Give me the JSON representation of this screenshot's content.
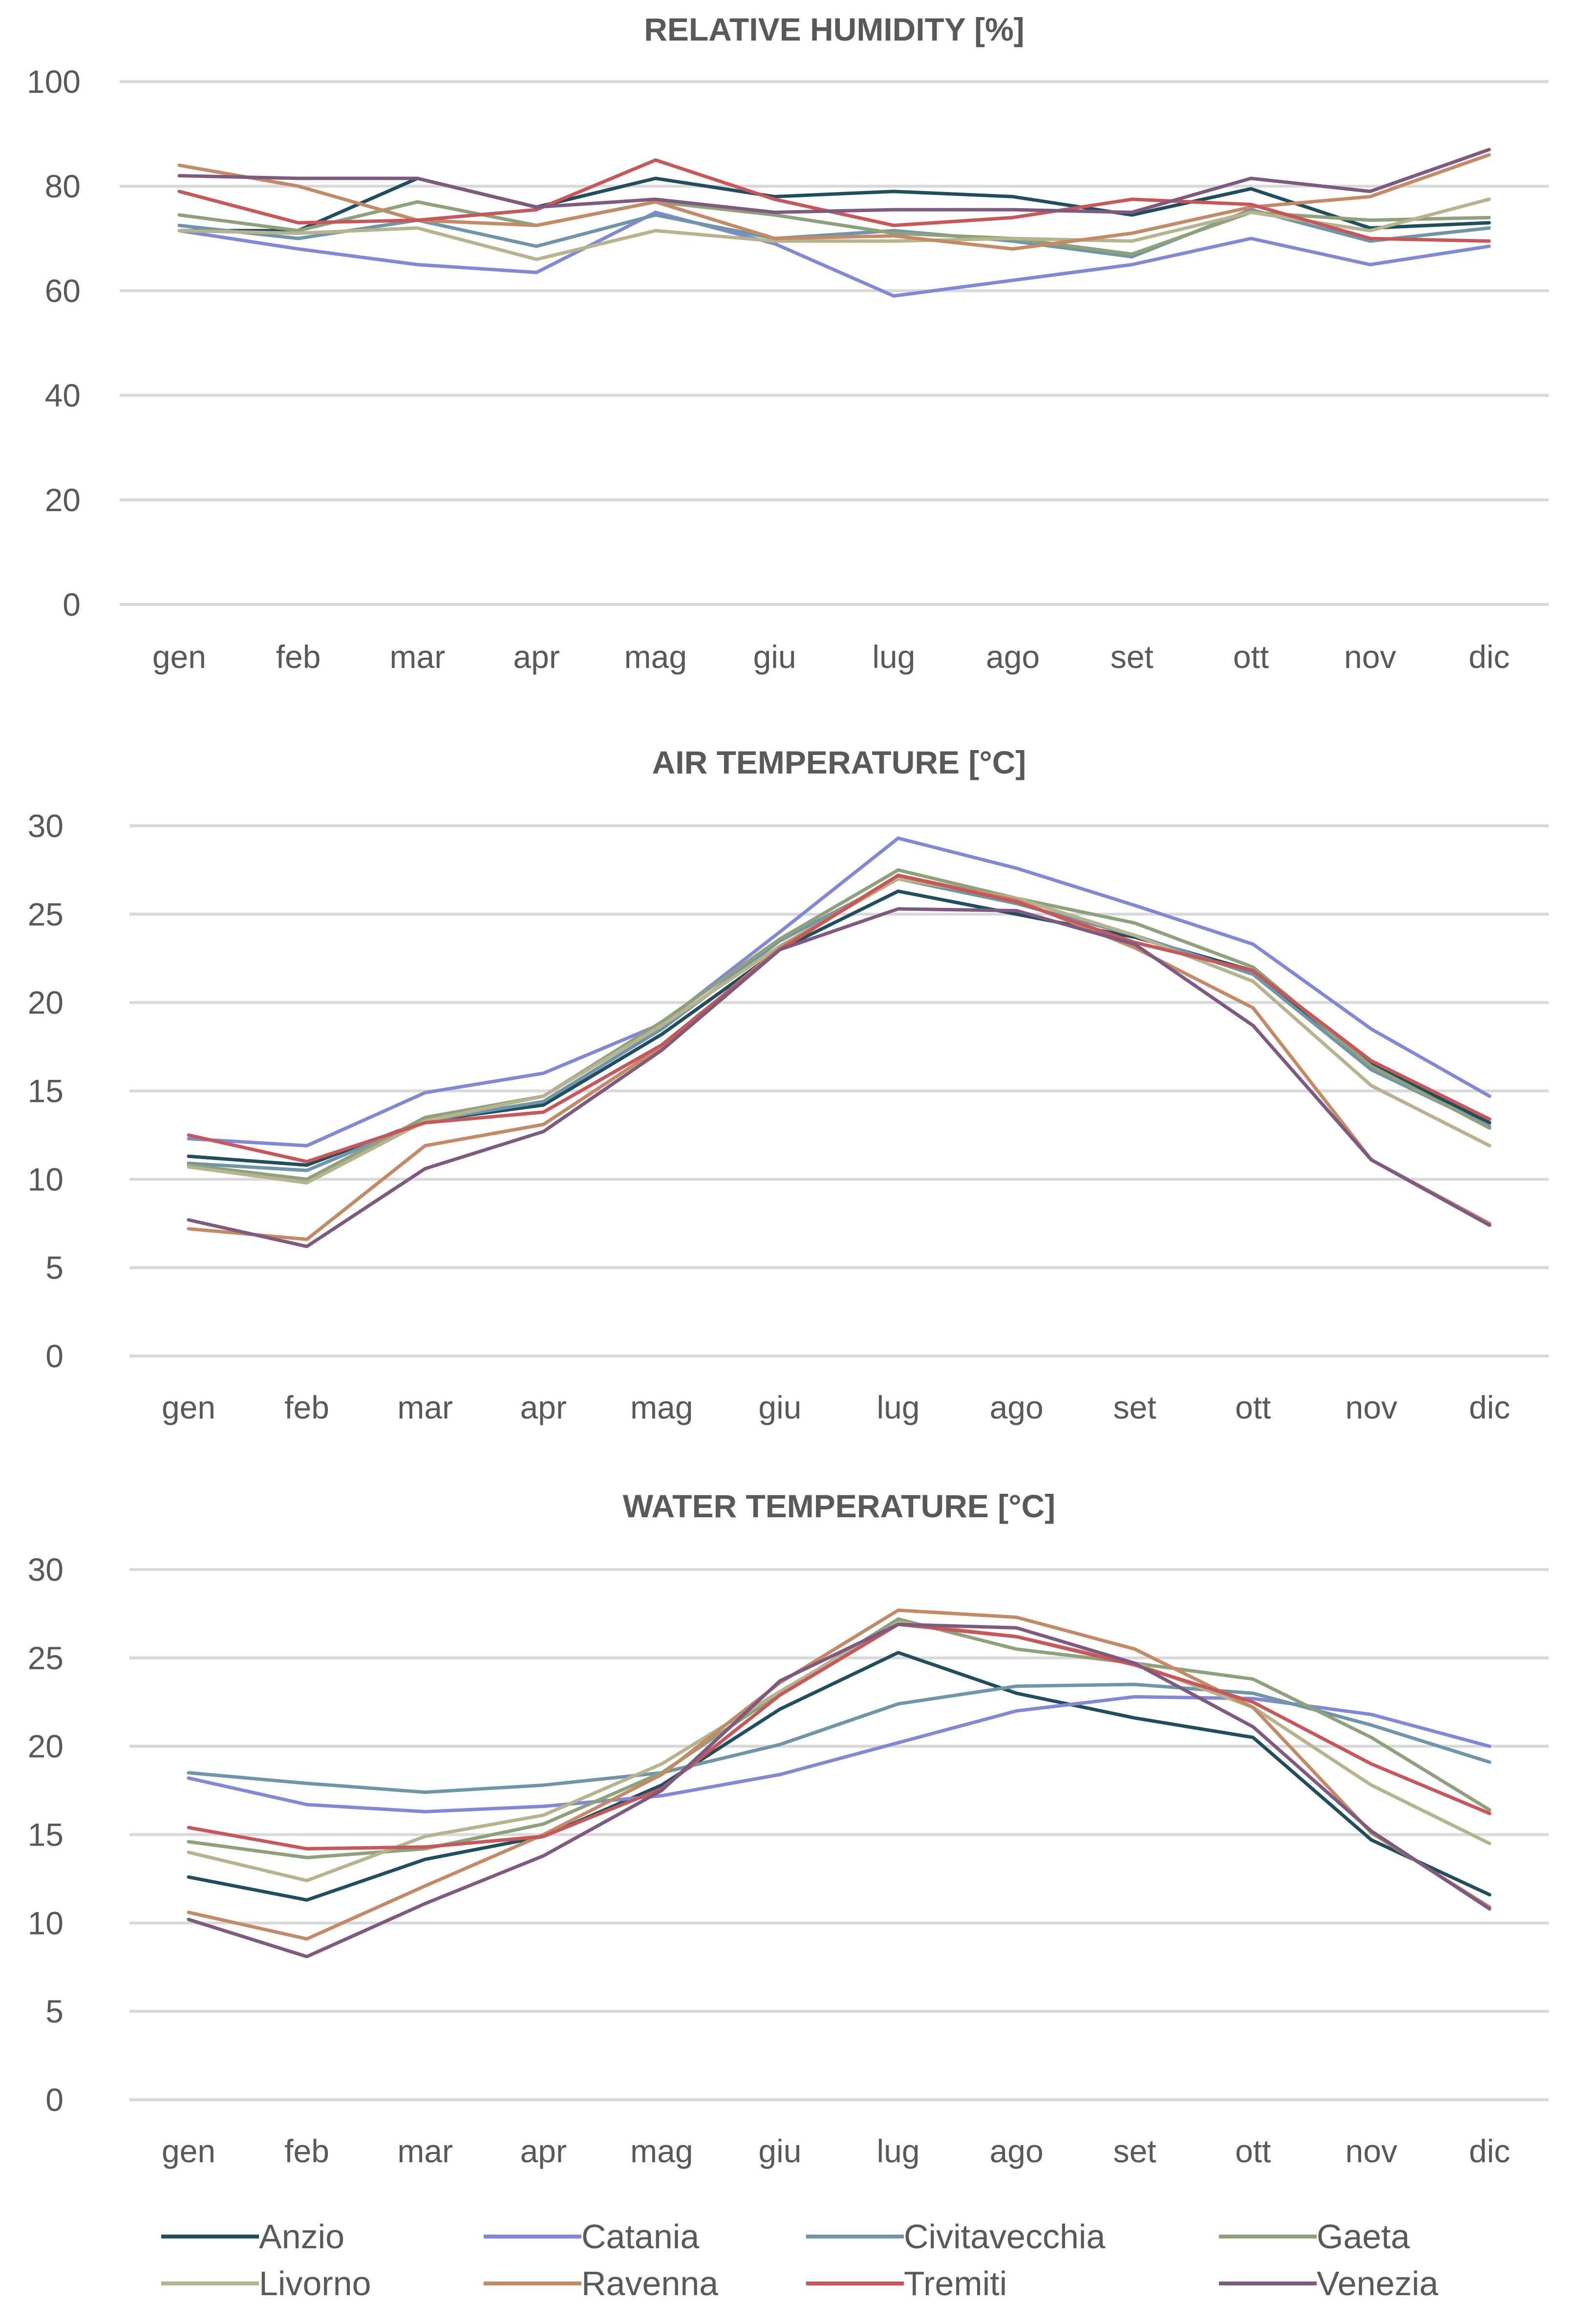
{
  "chart_data": [
    {
      "type": "line",
      "title": "RELATIVE HUMIDITY [%]",
      "xlabel": "",
      "ylabel": "",
      "ylim": [
        0,
        100
      ],
      "yticks": [
        0,
        20,
        40,
        60,
        80,
        100
      ],
      "categories": [
        "gen",
        "feb",
        "mar",
        "apr",
        "mag",
        "giu",
        "lug",
        "ago",
        "set",
        "ott",
        "nov",
        "dic"
      ],
      "series": [
        {
          "name": "Anzio",
          "values": [
            71.5,
            71.5,
            81.5,
            76,
            81.5,
            78,
            79,
            78,
            74.5,
            79.5,
            72,
            73
          ]
        },
        {
          "name": "Catania",
          "values": [
            71.5,
            68,
            65,
            63.5,
            75,
            69,
            59,
            62,
            65,
            70,
            65,
            68.5
          ]
        },
        {
          "name": "Civitavecchia",
          "values": [
            72.5,
            70,
            73.5,
            68.5,
            74.5,
            70,
            71.5,
            69.5,
            66.5,
            75.5,
            69.5,
            72
          ]
        },
        {
          "name": "Gaeta",
          "values": [
            74.5,
            71.5,
            77,
            72.5,
            77,
            74.5,
            71,
            70,
            67,
            75,
            73.5,
            74
          ]
        },
        {
          "name": "Livorno",
          "values": [
            71.5,
            71,
            72,
            66,
            71.5,
            69.5,
            69.5,
            70,
            69.5,
            75,
            71.5,
            77.5
          ]
        },
        {
          "name": "Ravenna",
          "values": [
            84,
            80,
            73.5,
            72.5,
            77,
            70,
            70.5,
            68,
            71,
            76,
            78,
            86
          ]
        },
        {
          "name": "Tremiti",
          "values": [
            79,
            73,
            73.5,
            75.5,
            85,
            77.5,
            72.5,
            74,
            77.5,
            76.5,
            70,
            69.5
          ]
        },
        {
          "name": "Venezia",
          "values": [
            82,
            81.5,
            81.5,
            76,
            77.5,
            75,
            75.5,
            75.5,
            75,
            81.5,
            79,
            87
          ]
        }
      ]
    },
    {
      "type": "line",
      "title": "AIR TEMPERATURE [°C]",
      "xlabel": "",
      "ylabel": "",
      "ylim": [
        0,
        30
      ],
      "yticks": [
        0,
        5,
        10,
        15,
        20,
        25,
        30
      ],
      "categories": [
        "gen",
        "feb",
        "mar",
        "apr",
        "mag",
        "giu",
        "lug",
        "ago",
        "set",
        "ott",
        "nov",
        "dic"
      ],
      "series": [
        {
          "name": "Anzio",
          "values": [
            11.3,
            10.8,
            13.3,
            14.2,
            18.2,
            23.0,
            26.3,
            25.0,
            23.7,
            21.8,
            16.5,
            13.2
          ]
        },
        {
          "name": "Catania",
          "values": [
            12.3,
            11.9,
            14.9,
            16.0,
            18.8,
            24.0,
            29.3,
            27.6,
            25.5,
            23.3,
            18.5,
            14.7
          ]
        },
        {
          "name": "Civitavecchia",
          "values": [
            10.9,
            10.5,
            13.3,
            14.4,
            18.5,
            23.5,
            27.0,
            25.6,
            23.8,
            21.6,
            16.2,
            13.0
          ]
        },
        {
          "name": "Gaeta",
          "values": [
            10.8,
            10.0,
            13.5,
            14.7,
            18.9,
            23.6,
            27.5,
            25.9,
            24.5,
            22.0,
            16.4,
            12.9
          ]
        },
        {
          "name": "Livorno",
          "values": [
            10.7,
            9.8,
            13.3,
            14.7,
            18.7,
            23.2,
            27.0,
            25.9,
            23.8,
            21.2,
            15.3,
            11.9
          ]
        },
        {
          "name": "Ravenna",
          "values": [
            7.2,
            6.6,
            11.9,
            13.1,
            17.5,
            23.1,
            27.2,
            25.8,
            23.1,
            19.7,
            11.1,
            7.5
          ]
        },
        {
          "name": "Tremiti",
          "values": [
            12.5,
            11.0,
            13.2,
            13.8,
            17.6,
            23.0,
            27.2,
            25.7,
            23.4,
            21.8,
            16.7,
            13.4
          ]
        },
        {
          "name": "Venezia",
          "values": [
            7.7,
            6.2,
            10.6,
            12.7,
            17.3,
            23.0,
            25.3,
            25.2,
            23.3,
            18.7,
            11.1,
            7.4
          ]
        }
      ]
    },
    {
      "type": "line",
      "title": "WATER TEMPERATURE [°C]",
      "xlabel": "",
      "ylabel": "",
      "ylim": [
        0,
        30
      ],
      "yticks": [
        0,
        5,
        10,
        15,
        20,
        25,
        30
      ],
      "categories": [
        "gen",
        "feb",
        "mar",
        "apr",
        "mag",
        "giu",
        "lug",
        "ago",
        "set",
        "ott",
        "nov",
        "dic"
      ],
      "series": [
        {
          "name": "Anzio",
          "values": [
            12.6,
            11.3,
            13.6,
            14.9,
            17.8,
            22.1,
            25.3,
            23.0,
            21.6,
            20.5,
            14.7,
            11.6
          ]
        },
        {
          "name": "Catania",
          "values": [
            18.2,
            16.7,
            16.3,
            16.6,
            17.2,
            18.4,
            20.2,
            22.0,
            22.8,
            22.7,
            21.8,
            20.0
          ]
        },
        {
          "name": "Civitavecchia",
          "values": [
            18.5,
            17.9,
            17.4,
            17.8,
            18.5,
            20.1,
            22.4,
            23.4,
            23.5,
            23.0,
            21.2,
            19.1
          ]
        },
        {
          "name": "Gaeta",
          "values": [
            14.6,
            13.7,
            14.2,
            15.6,
            18.5,
            23.0,
            27.2,
            25.5,
            24.7,
            23.8,
            20.5,
            16.4
          ]
        },
        {
          "name": "Livorno",
          "values": [
            14.0,
            12.4,
            14.9,
            16.1,
            19.0,
            23.1,
            27.0,
            26.2,
            24.7,
            22.2,
            17.8,
            14.5
          ]
        },
        {
          "name": "Ravenna",
          "values": [
            10.6,
            9.1,
            12.1,
            15.0,
            18.4,
            23.6,
            27.7,
            27.3,
            25.5,
            22.2,
            15.1,
            10.9
          ]
        },
        {
          "name": "Tremiti",
          "values": [
            15.4,
            14.2,
            14.3,
            14.9,
            17.6,
            22.9,
            26.9,
            26.2,
            24.6,
            22.5,
            19.0,
            16.2
          ]
        },
        {
          "name": "Venezia",
          "values": [
            10.2,
            8.1,
            11.1,
            13.8,
            17.5,
            23.7,
            26.9,
            26.7,
            24.7,
            21.1,
            15.2,
            10.8
          ]
        }
      ]
    }
  ],
  "legend": {
    "position": "bottom",
    "items": [
      {
        "name": "Anzio",
        "color": "#1f4e5f"
      },
      {
        "name": "Catania",
        "color": "#8188d6"
      },
      {
        "name": "Civitavecchia",
        "color": "#6f96a8"
      },
      {
        "name": "Gaeta",
        "color": "#8ea17a"
      },
      {
        "name": "Livorno",
        "color": "#b8b38f"
      },
      {
        "name": "Ravenna",
        "color": "#c48a65"
      },
      {
        "name": "Tremiti",
        "color": "#c8575a"
      },
      {
        "name": "Venezia",
        "color": "#7e5a80"
      }
    ]
  },
  "colors": {
    "grid": "#d9d9d9",
    "text": "#595959"
  }
}
